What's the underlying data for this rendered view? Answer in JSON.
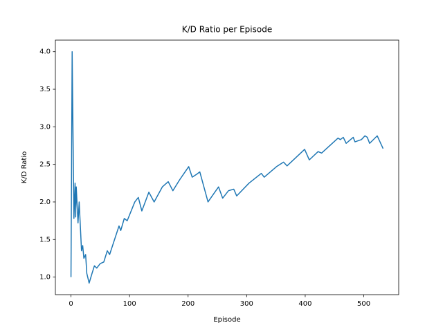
{
  "chart_data": {
    "type": "line",
    "title": "K/D Ratio per Episode",
    "xlabel": "Episode",
    "ylabel": "K/D Ratio",
    "x": [
      0,
      2,
      5,
      7,
      8,
      9,
      12,
      14,
      18,
      20,
      22,
      25,
      27,
      31,
      36,
      40,
      44,
      50,
      56,
      62,
      66,
      82,
      85,
      91,
      96,
      109,
      115,
      121,
      133,
      142,
      156,
      166,
      174,
      186,
      201,
      207,
      215,
      220,
      234,
      252,
      259,
      269,
      278,
      283,
      304,
      325,
      330,
      351,
      363,
      369,
      399,
      407,
      422,
      428,
      456,
      460,
      465,
      470,
      482,
      485,
      496,
      502,
      506,
      510,
      523,
      533
    ],
    "values": [
      1.0,
      4.0,
      1.78,
      2.25,
      1.8,
      2.2,
      1.72,
      2.0,
      1.35,
      1.42,
      1.25,
      1.3,
      1.05,
      0.92,
      1.05,
      1.15,
      1.12,
      1.18,
      1.2,
      1.35,
      1.3,
      1.68,
      1.62,
      1.78,
      1.75,
      2.0,
      2.06,
      1.88,
      2.13,
      2.0,
      2.2,
      2.27,
      2.15,
      2.3,
      2.47,
      2.33,
      2.37,
      2.4,
      2.0,
      2.2,
      2.05,
      2.15,
      2.17,
      2.08,
      2.25,
      2.38,
      2.33,
      2.47,
      2.53,
      2.48,
      2.7,
      2.56,
      2.67,
      2.65,
      2.85,
      2.83,
      2.86,
      2.78,
      2.86,
      2.8,
      2.83,
      2.88,
      2.86,
      2.78,
      2.88,
      2.71
    ],
    "color": "#1f77b4",
    "xlim": [
      -26.65,
      559.65
    ],
    "xticks": [
      0,
      100,
      200,
      300,
      400,
      500
    ],
    "ylim": [
      0.766,
      4.154
    ],
    "yticks": [
      {
        "value": 1.0,
        "label": "1.0"
      },
      {
        "value": 1.5,
        "label": "1.5"
      },
      {
        "value": 2.0,
        "label": "2.0"
      },
      {
        "value": 2.5,
        "label": "2.5"
      },
      {
        "value": 3.0,
        "label": "3.0"
      },
      {
        "value": 3.5,
        "label": "3.5"
      },
      {
        "value": 4.0,
        "label": "4.0"
      }
    ],
    "grid": false
  }
}
